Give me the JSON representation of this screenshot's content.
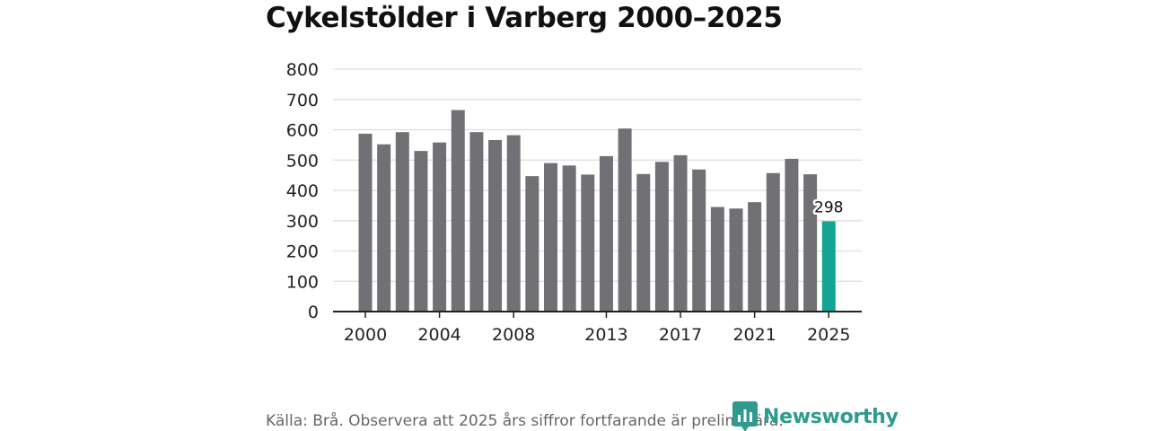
{
  "title": "Cykelstölder i Varberg 2000–2025",
  "source": "Källa: Brå. Observera att 2025 års siffror fortfarande är preliminära.",
  "brand": {
    "name": "Newsworthy",
    "icon": "newsworthy-logo-icon",
    "color": "#2f9a90"
  },
  "colors": {
    "bar": "#717175",
    "highlight": "#12a596",
    "grid": "#dddddd",
    "axis": "#222222"
  },
  "chart_data": {
    "type": "bar",
    "title": "Cykelstölder i Varberg 2000–2025",
    "xlabel": "",
    "ylabel": "",
    "ylim": [
      0,
      800
    ],
    "yticks": [
      0,
      100,
      200,
      300,
      400,
      500,
      600,
      700,
      800
    ],
    "grid": true,
    "categories": [
      "2000",
      "2001",
      "2002",
      "2003",
      "2004",
      "2005",
      "2006",
      "2007",
      "2008",
      "2009",
      "2010",
      "2011",
      "2012",
      "2013",
      "2014",
      "2015",
      "2016",
      "2017",
      "2018",
      "2019",
      "2020",
      "2021",
      "2022",
      "2023",
      "2024",
      "2025"
    ],
    "xtick_labels": [
      "2000",
      "2004",
      "2008",
      "2013",
      "2017",
      "2021",
      "2025"
    ],
    "series": [
      {
        "name": "Cykelstölder",
        "values": [
          587,
          552,
          592,
          530,
          558,
          665,
          592,
          566,
          582,
          447,
          490,
          482,
          452,
          513,
          604,
          454,
          494,
          516,
          469,
          345,
          340,
          361,
          457,
          504,
          453,
          298
        ]
      }
    ],
    "highlight": {
      "category": "2025",
      "label": "298"
    }
  }
}
